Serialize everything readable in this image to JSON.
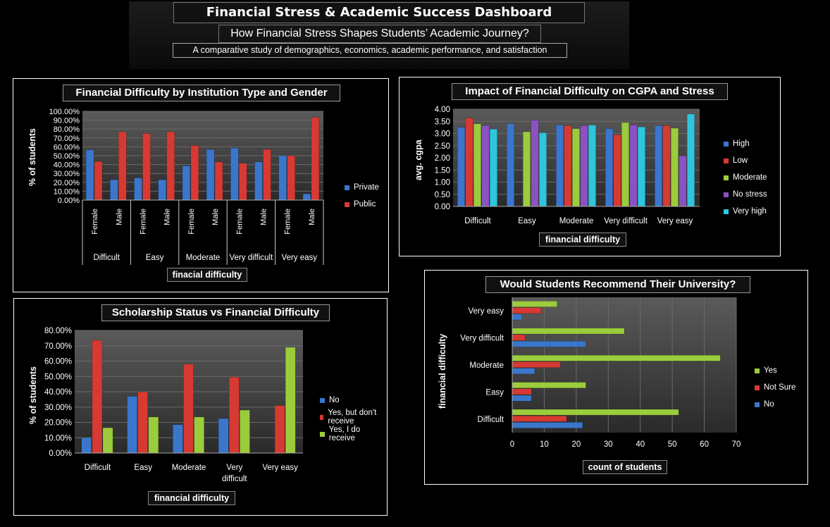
{
  "header": {
    "title": "Financial Stress & Academic Success Dashboard",
    "question": "How Financial Stress Shapes Students’ Academic Journey?",
    "description": "A comparative study of demographics, economics, academic performance, and satisfaction"
  },
  "colors": {
    "blue": "#3a76cc",
    "red": "#d63a32",
    "green": "#9bcc3c",
    "purple": "#8a52c2",
    "cyan": "#2ec6dc",
    "plot": "#3d3d3d"
  },
  "chart_data": [
    {
      "id": "institution",
      "type": "bar",
      "title": "Financial Difficulty  by Institution  Type and Gender",
      "xlabel": "finacial difficulty",
      "ylabel": "% of students",
      "groups": [
        "Difficult",
        "Easy",
        "Moderate",
        "Very difficult",
        "Very easy"
      ],
      "categories": [
        "Female",
        "Male",
        "Female",
        "Male",
        "Female",
        "Male",
        "Female",
        "Male",
        "Female",
        "Male"
      ],
      "series": [
        {
          "name": "Private",
          "values": [
            56.5,
            23,
            25,
            23,
            38.5,
            57,
            58.5,
            43,
            50,
            7
          ]
        },
        {
          "name": "Public",
          "values": [
            43.5,
            77,
            75,
            77,
            61.5,
            43,
            41.5,
            57,
            50,
            93
          ]
        }
      ],
      "yticks": [
        "0.00%",
        "10.00%",
        "20.00%",
        "30.00%",
        "40.00%",
        "50.00%",
        "60.00%",
        "70.00%",
        "80.00%",
        "90.00%",
        "100.00%"
      ],
      "ylim": [
        0,
        100
      ],
      "legend": "right"
    },
    {
      "id": "cgpa",
      "type": "bar",
      "title": "Impact of Financial Difficulty on CGPA and Stress",
      "xlabel": "financial difficulty",
      "ylabel": "avg. cgpa",
      "categories": [
        "Difficult",
        "Easy",
        "Moderate",
        "Very difficult",
        "Very easy"
      ],
      "series": [
        {
          "name": "High",
          "values": [
            3.25,
            3.4,
            3.35,
            3.2,
            3.32
          ]
        },
        {
          "name": "Low",
          "values": [
            3.63,
            null,
            3.32,
            2.95,
            3.32
          ]
        },
        {
          "name": "Moderate",
          "values": [
            3.4,
            3.07,
            3.2,
            3.45,
            3.22
          ]
        },
        {
          "name": "No stress",
          "values": [
            3.33,
            3.55,
            3.32,
            3.35,
            2.08
          ]
        },
        {
          "name": "Very high",
          "values": [
            3.18,
            3.03,
            3.35,
            3.27,
            3.8
          ]
        }
      ],
      "yticks": [
        "0.00",
        "0.50",
        "1.00",
        "1.50",
        "2.00",
        "2.50",
        "3.00",
        "3.50",
        "4.00"
      ],
      "ylim": [
        0,
        4
      ],
      "legend": "right"
    },
    {
      "id": "scholarship",
      "type": "bar",
      "title": "Scholarship Status vs Financial Difficulty",
      "xlabel": "financial difficulty",
      "ylabel": "% of students",
      "categories": [
        "Difficult",
        "Easy",
        "Moderate",
        "Very difficult",
        "Very easy"
      ],
      "series": [
        {
          "name": "No",
          "values": [
            10,
            37,
            18.5,
            22.5,
            null
          ]
        },
        {
          "name": "Yes, but don't receive",
          "values": [
            73.5,
            40,
            58,
            49.5,
            31
          ]
        },
        {
          "name": "Yes, I do receive",
          "values": [
            16.5,
            23.5,
            23.5,
            28,
            69
          ]
        }
      ],
      "yticks": [
        "0.00%",
        "10.00%",
        "20.00%",
        "30.00%",
        "40.00%",
        "50.00%",
        "60.00%",
        "70.00%",
        "80.00%"
      ],
      "ylim": [
        0,
        80
      ],
      "legend": "right"
    },
    {
      "id": "recommend",
      "type": "bar",
      "orientation": "horizontal",
      "title": "Would Students Recommend Their University?",
      "xlabel": "count of students",
      "ylabel": "financial difficulty",
      "categories": [
        "Difficult",
        "Easy",
        "Moderate",
        "Very difficult",
        "Very easy"
      ],
      "series": [
        {
          "name": "No",
          "values": [
            22,
            6,
            7,
            23,
            3
          ]
        },
        {
          "name": "Not Sure",
          "values": [
            17,
            6,
            15,
            4,
            9
          ]
        },
        {
          "name": "Yes",
          "values": [
            52,
            23,
            65,
            35,
            14
          ]
        }
      ],
      "xticks": [
        "0",
        "10",
        "20",
        "30",
        "40",
        "50",
        "60",
        "70"
      ],
      "xlim": [
        0,
        70
      ],
      "legend": "right"
    }
  ]
}
